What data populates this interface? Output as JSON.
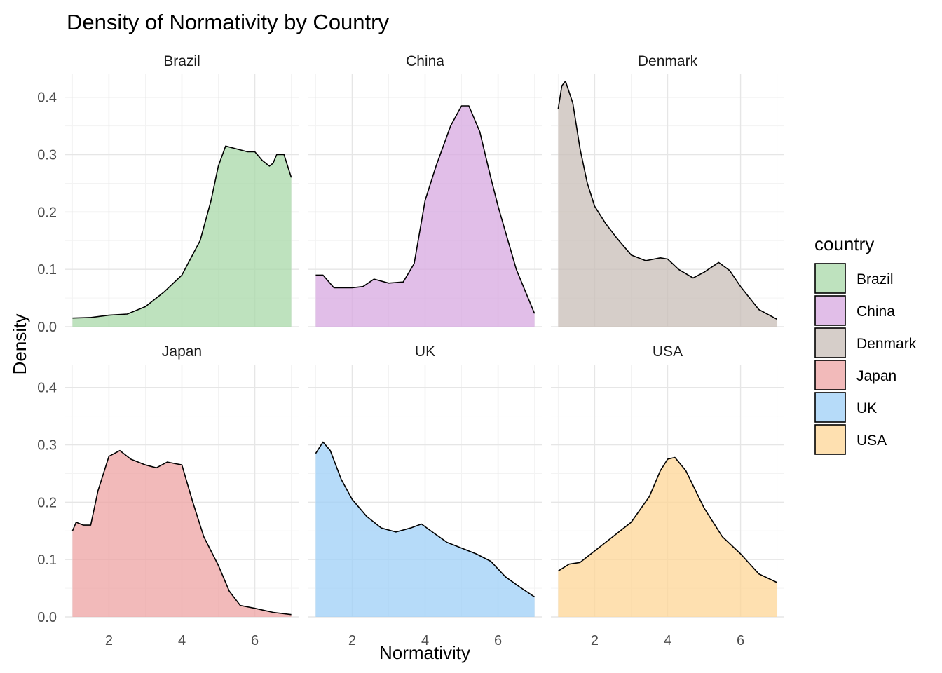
{
  "chart_data": {
    "type": "area",
    "title": "Density of Normativity by Country",
    "xlabel": "Normativity",
    "ylabel": "Density",
    "xlim": [
      0.8,
      7.2
    ],
    "ylim": [
      0,
      0.44
    ],
    "x_ticks": [
      2,
      4,
      6
    ],
    "x_tick_labels": [
      "2",
      "4",
      "6"
    ],
    "y_ticks": [
      0.0,
      0.1,
      0.2,
      0.3,
      0.4
    ],
    "y_tick_labels": [
      "0.0",
      "0.1",
      "0.2",
      "0.3",
      "0.4"
    ],
    "grid": true,
    "facet_layout": "2 rows x 3 columns",
    "legend": {
      "title": "country",
      "placement": "right",
      "entries": [
        {
          "label": "Brazil",
          "color": "#A8D8A8"
        },
        {
          "label": "China",
          "color": "#D7A8E0"
        },
        {
          "label": "Denmark",
          "color": "#C8BDB7"
        },
        {
          "label": "Japan",
          "color": "#EDA3A3"
        },
        {
          "label": "UK",
          "color": "#9ECFF7"
        },
        {
          "label": "USA",
          "color": "#FED596"
        }
      ]
    },
    "series": [
      {
        "name": "Brazil",
        "color": "#A8D8A8",
        "x": [
          1.0,
          1.5,
          2.0,
          2.5,
          3.0,
          3.5,
          4.0,
          4.5,
          4.8,
          5.0,
          5.2,
          5.5,
          5.8,
          6.0,
          6.2,
          6.4,
          6.5,
          6.6,
          6.8,
          7.0
        ],
        "y": [
          0.015,
          0.016,
          0.02,
          0.022,
          0.035,
          0.06,
          0.09,
          0.15,
          0.22,
          0.28,
          0.315,
          0.31,
          0.305,
          0.305,
          0.29,
          0.28,
          0.285,
          0.3,
          0.3,
          0.26
        ]
      },
      {
        "name": "China",
        "color": "#D7A8E0",
        "x": [
          1.0,
          1.2,
          1.5,
          2.0,
          2.3,
          2.6,
          3.0,
          3.4,
          3.7,
          4.0,
          4.3,
          4.7,
          5.0,
          5.2,
          5.5,
          5.8,
          6.0,
          6.5,
          7.0
        ],
        "y": [
          0.09,
          0.09,
          0.068,
          0.068,
          0.07,
          0.083,
          0.076,
          0.078,
          0.11,
          0.22,
          0.28,
          0.35,
          0.385,
          0.385,
          0.34,
          0.26,
          0.21,
          0.1,
          0.023
        ]
      },
      {
        "name": "Denmark",
        "color": "#C8BDB7",
        "x": [
          1.0,
          1.1,
          1.2,
          1.4,
          1.6,
          1.8,
          2.0,
          2.3,
          2.6,
          3.0,
          3.4,
          3.8,
          4.0,
          4.3,
          4.7,
          5.0,
          5.4,
          5.7,
          6.0,
          6.5,
          7.0
        ],
        "y": [
          0.38,
          0.42,
          0.428,
          0.39,
          0.31,
          0.25,
          0.21,
          0.18,
          0.155,
          0.125,
          0.115,
          0.12,
          0.118,
          0.1,
          0.085,
          0.095,
          0.112,
          0.098,
          0.07,
          0.03,
          0.013
        ]
      },
      {
        "name": "Japan",
        "color": "#EDA3A3",
        "x": [
          1.0,
          1.1,
          1.3,
          1.5,
          1.7,
          2.0,
          2.3,
          2.6,
          3.0,
          3.3,
          3.6,
          4.0,
          4.3,
          4.6,
          5.0,
          5.3,
          5.6,
          6.0,
          6.5,
          7.0
        ],
        "y": [
          0.15,
          0.165,
          0.16,
          0.16,
          0.22,
          0.28,
          0.29,
          0.275,
          0.265,
          0.26,
          0.27,
          0.265,
          0.2,
          0.14,
          0.09,
          0.045,
          0.02,
          0.015,
          0.008,
          0.004
        ]
      },
      {
        "name": "UK",
        "color": "#9ECFF7",
        "x": [
          1.0,
          1.2,
          1.4,
          1.7,
          2.0,
          2.4,
          2.8,
          3.2,
          3.6,
          3.9,
          4.2,
          4.6,
          5.0,
          5.4,
          5.8,
          6.2,
          6.6,
          7.0
        ],
        "y": [
          0.285,
          0.305,
          0.29,
          0.24,
          0.205,
          0.175,
          0.155,
          0.148,
          0.155,
          0.162,
          0.148,
          0.13,
          0.12,
          0.11,
          0.097,
          0.07,
          0.052,
          0.035
        ]
      },
      {
        "name": "USA",
        "color": "#FED596",
        "x": [
          1.0,
          1.3,
          1.6,
          2.0,
          2.5,
          3.0,
          3.5,
          3.8,
          4.0,
          4.2,
          4.5,
          5.0,
          5.5,
          6.0,
          6.5,
          7.0
        ],
        "y": [
          0.08,
          0.092,
          0.095,
          0.115,
          0.14,
          0.165,
          0.21,
          0.255,
          0.275,
          0.278,
          0.255,
          0.19,
          0.14,
          0.11,
          0.075,
          0.06
        ]
      }
    ]
  }
}
